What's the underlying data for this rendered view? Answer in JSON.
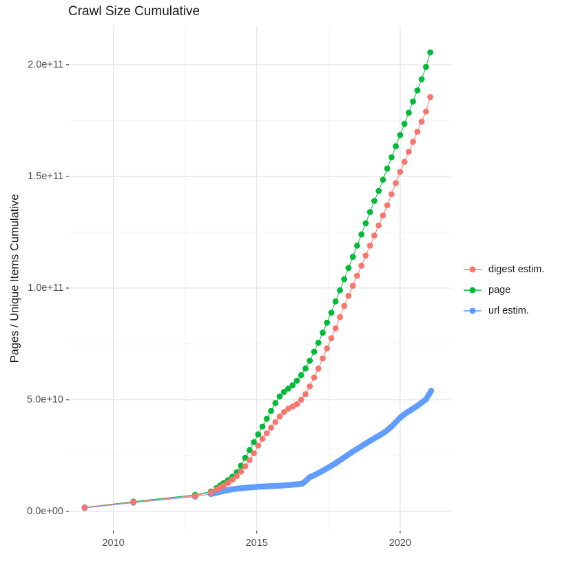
{
  "title": "Crawl Size Cumulative",
  "chart_data": {
    "type": "line-scatter",
    "title": "Crawl Size Cumulative",
    "xlabel": "",
    "ylabel": "Pages / Unique Items Cumulative",
    "value_unit": "1e9",
    "grid": "on",
    "legend_position": "right",
    "x_range": [
      2008.45,
      2021.78
    ],
    "y_range_e9": [
      0,
      216
    ],
    "x_ticks": [
      {
        "label": "2010",
        "value": 2010
      },
      {
        "label": "2015",
        "value": 2015
      },
      {
        "label": "2020",
        "value": 2020
      }
    ],
    "x_minor": [
      2012.5,
      2017.5
    ],
    "y_ticks": [
      {
        "label": "0.0e+00",
        "value": 0
      },
      {
        "label": "5.0e+10",
        "value": 50
      },
      {
        "label": "1.0e+11",
        "value": 100
      },
      {
        "label": "1.5e+11",
        "value": 150
      },
      {
        "label": "2.0e+11",
        "value": 200
      }
    ],
    "y_minor": [
      25,
      75,
      125,
      175
    ],
    "series": [
      {
        "name": "digest estim.",
        "color": "#F8766D",
        "dense_from": 2013.3,
        "dot_spacing_years": 0.2,
        "points": [
          [
            2009.0,
            1.7
          ],
          [
            2010.7,
            4.2
          ],
          [
            2012.85,
            7.0
          ],
          [
            2013.4,
            8.5
          ],
          [
            2013.6,
            9.8
          ],
          [
            2013.85,
            11.5
          ],
          [
            2014.0,
            12.8
          ],
          [
            2014.15,
            14.2
          ],
          [
            2014.3,
            15.8
          ],
          [
            2014.45,
            17.8
          ],
          [
            2014.6,
            20.2
          ],
          [
            2014.75,
            23.0
          ],
          [
            2014.9,
            26.0
          ],
          [
            2015.05,
            29.5
          ],
          [
            2015.2,
            32.5
          ],
          [
            2015.35,
            35.0
          ],
          [
            2015.5,
            37.5
          ],
          [
            2015.65,
            40.0
          ],
          [
            2015.8,
            42.5
          ],
          [
            2015.95,
            44.5
          ],
          [
            2016.1,
            46.0
          ],
          [
            2016.25,
            47.0
          ],
          [
            2016.4,
            48.0
          ],
          [
            2016.55,
            50.0
          ],
          [
            2016.7,
            52.5
          ],
          [
            2016.85,
            56.0
          ],
          [
            2017.0,
            60.0
          ],
          [
            2017.15,
            64.0
          ],
          [
            2017.3,
            68.5
          ],
          [
            2017.45,
            73.0
          ],
          [
            2017.6,
            77.5
          ],
          [
            2017.75,
            82.0
          ],
          [
            2017.9,
            87.0
          ],
          [
            2018.05,
            92.0
          ],
          [
            2018.2,
            96.5
          ],
          [
            2018.35,
            101.0
          ],
          [
            2018.5,
            105.5
          ],
          [
            2018.65,
            110.0
          ],
          [
            2018.8,
            114.5
          ],
          [
            2018.95,
            119.0
          ],
          [
            2019.1,
            123.5
          ],
          [
            2019.25,
            128.0
          ],
          [
            2019.4,
            132.5
          ],
          [
            2019.55,
            137.0
          ],
          [
            2019.7,
            142.0
          ],
          [
            2019.85,
            147.0
          ],
          [
            2020.0,
            152.0
          ],
          [
            2020.15,
            156.5
          ],
          [
            2020.3,
            161.0
          ],
          [
            2020.45,
            165.5
          ],
          [
            2020.6,
            170.0
          ],
          [
            2020.75,
            174.5
          ],
          [
            2020.9,
            179.0
          ],
          [
            2021.05,
            185.5
          ]
        ]
      },
      {
        "name": "page",
        "color": "#00BA38",
        "dense_from": 2013.3,
        "dot_spacing_years": 0.2,
        "points": [
          [
            2009.0,
            1.8
          ],
          [
            2010.7,
            4.4
          ],
          [
            2012.85,
            7.4
          ],
          [
            2013.4,
            8.9
          ],
          [
            2013.6,
            10.5
          ],
          [
            2013.85,
            12.7
          ],
          [
            2014.0,
            14.0
          ],
          [
            2014.15,
            15.5
          ],
          [
            2014.3,
            17.5
          ],
          [
            2014.45,
            20.5
          ],
          [
            2014.6,
            24.0
          ],
          [
            2014.75,
            27.5
          ],
          [
            2014.9,
            31.0
          ],
          [
            2015.05,
            34.5
          ],
          [
            2015.2,
            38.0
          ],
          [
            2015.35,
            41.5
          ],
          [
            2015.5,
            45.0
          ],
          [
            2015.65,
            48.5
          ],
          [
            2015.8,
            51.5
          ],
          [
            2015.95,
            53.5
          ],
          [
            2016.1,
            55.0
          ],
          [
            2016.25,
            56.5
          ],
          [
            2016.4,
            58.5
          ],
          [
            2016.55,
            61.0
          ],
          [
            2016.7,
            64.0
          ],
          [
            2016.85,
            67.5
          ],
          [
            2017.0,
            71.5
          ],
          [
            2017.15,
            75.5
          ],
          [
            2017.3,
            80.0
          ],
          [
            2017.45,
            84.5
          ],
          [
            2017.6,
            89.0
          ],
          [
            2017.75,
            94.0
          ],
          [
            2017.9,
            99.0
          ],
          [
            2018.05,
            104.0
          ],
          [
            2018.2,
            109.0
          ],
          [
            2018.35,
            114.0
          ],
          [
            2018.5,
            119.0
          ],
          [
            2018.65,
            124.0
          ],
          [
            2018.8,
            129.0
          ],
          [
            2018.95,
            134.0
          ],
          [
            2019.1,
            139.0
          ],
          [
            2019.25,
            143.5
          ],
          [
            2019.4,
            148.5
          ],
          [
            2019.55,
            153.5
          ],
          [
            2019.7,
            158.5
          ],
          [
            2019.85,
            163.5
          ],
          [
            2020.0,
            168.5
          ],
          [
            2020.15,
            173.5
          ],
          [
            2020.3,
            178.5
          ],
          [
            2020.45,
            183.5
          ],
          [
            2020.6,
            188.5
          ],
          [
            2020.75,
            193.5
          ],
          [
            2020.9,
            199.0
          ],
          [
            2021.05,
            205.5
          ]
        ]
      },
      {
        "name": "url estim.",
        "color": "#619CFF",
        "dense_from": 2013.3,
        "dot_spacing_years": 0.08,
        "points": [
          [
            2009.0,
            1.5
          ],
          [
            2010.7,
            3.9
          ],
          [
            2012.85,
            6.6
          ],
          [
            2013.4,
            7.8
          ],
          [
            2013.6,
            8.4
          ],
          [
            2013.85,
            9.2
          ],
          [
            2014.1,
            9.8
          ],
          [
            2014.4,
            10.3
          ],
          [
            2014.7,
            10.7
          ],
          [
            2015.0,
            11.0
          ],
          [
            2015.3,
            11.2
          ],
          [
            2015.6,
            11.4
          ],
          [
            2015.9,
            11.6
          ],
          [
            2016.2,
            11.9
          ],
          [
            2016.45,
            12.2
          ],
          [
            2016.6,
            12.5
          ],
          [
            2016.72,
            13.8
          ],
          [
            2016.85,
            15.3
          ],
          [
            2017.0,
            16.2
          ],
          [
            2017.15,
            17.2
          ],
          [
            2017.3,
            18.2
          ],
          [
            2017.45,
            19.3
          ],
          [
            2017.6,
            20.4
          ],
          [
            2017.75,
            21.6
          ],
          [
            2017.9,
            22.9
          ],
          [
            2018.05,
            24.2
          ],
          [
            2018.2,
            25.5
          ],
          [
            2018.35,
            26.8
          ],
          [
            2018.5,
            28.0
          ],
          [
            2018.65,
            29.2
          ],
          [
            2018.8,
            30.4
          ],
          [
            2018.95,
            31.6
          ],
          [
            2019.1,
            32.7
          ],
          [
            2019.25,
            33.8
          ],
          [
            2019.4,
            35.0
          ],
          [
            2019.55,
            36.4
          ],
          [
            2019.7,
            38.0
          ],
          [
            2019.85,
            40.0
          ],
          [
            2020.0,
            42.0
          ],
          [
            2020.15,
            43.5
          ],
          [
            2020.3,
            44.8
          ],
          [
            2020.45,
            46.0
          ],
          [
            2020.6,
            47.3
          ],
          [
            2020.75,
            48.7
          ],
          [
            2020.9,
            50.2
          ],
          [
            2021.08,
            54.0
          ]
        ]
      }
    ],
    "draw_order": [
      2,
      1,
      0
    ]
  },
  "style": {
    "background": "#FFFFFF",
    "grid_major": "#E3E3E3",
    "grid_minor": "#F0F0F0",
    "tick_mark": "#333333",
    "tick_text": "#4D4D4D",
    "text": "#1A1A1A"
  }
}
